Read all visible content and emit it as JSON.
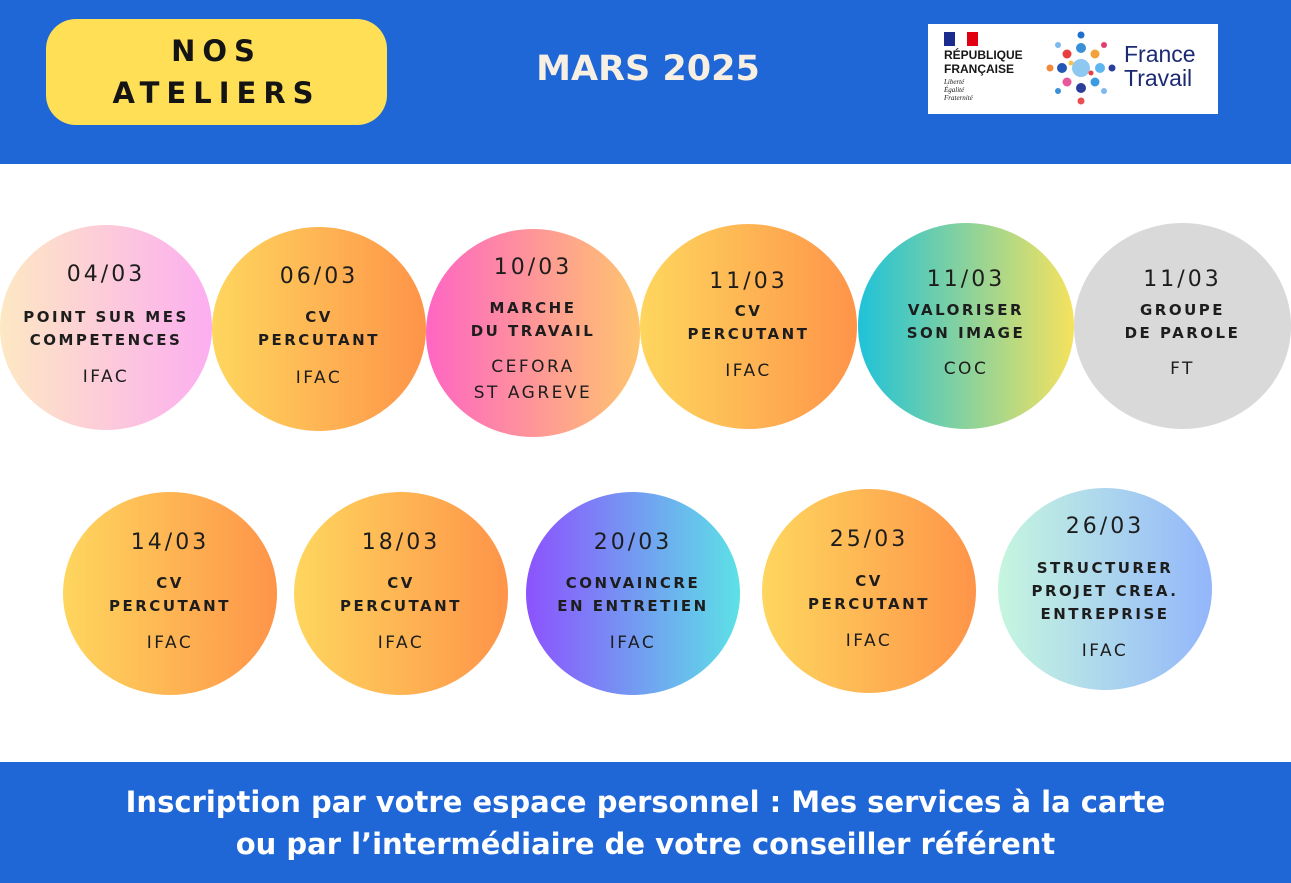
{
  "header": {
    "title_line1": "NOS",
    "title_line2": "ATELIERS",
    "month": "MARS 2025",
    "logo_rf": {
      "title": "RÉPUBLIQUE\nFRANÇAISE",
      "motto": "Liberté\nÉgalité\nFraternité"
    },
    "logo_ft": {
      "name": "France\nTravail",
      "icon": "france-travail-dots-icon"
    }
  },
  "workshops": [
    {
      "date": "04/03",
      "title": "POINT SUR MES\nCOMPETENCES",
      "org": "IFAC",
      "colors": [
        "#fde8c3",
        "#fcaef0"
      ]
    },
    {
      "date": "06/03",
      "title": "CV\nPERCUTANT",
      "org": "IFAC",
      "colors": [
        "#fed65e",
        "#fe9449"
      ]
    },
    {
      "date": "10/03",
      "title": "MARCHE\nDU TRAVAIL",
      "org": "CEFORA\nST AGREVE",
      "colors": [
        "#fe66c3",
        "#fec56e"
      ]
    },
    {
      "date": "11/03",
      "title": "CV\nPERCUTANT",
      "org": "IFAC",
      "colors": [
        "#fed65e",
        "#fe9449"
      ]
    },
    {
      "date": "11/03",
      "title": "VALORISER\nSON IMAGE",
      "org": "COC",
      "colors": [
        "#1fc2d9",
        "#f5e25e"
      ]
    },
    {
      "date": "11/03",
      "title": "GROUPE\nDE PAROLE",
      "org": "FT",
      "colors": [
        "#d9d9d9",
        "#d9d9d9"
      ]
    },
    {
      "date": "14/03",
      "title": "CV\nPERCUTANT",
      "org": "IFAC",
      "colors": [
        "#fed65e",
        "#fe9449"
      ]
    },
    {
      "date": "18/03",
      "title": "CV\nPERCUTANT",
      "org": "IFAC",
      "colors": [
        "#fed65e",
        "#fe9449"
      ]
    },
    {
      "date": "20/03",
      "title": "CONVAINCRE\nEN ENTRETIEN",
      "org": "IFAC",
      "colors": [
        "#8c52fe",
        "#5ce1e6"
      ]
    },
    {
      "date": "25/03",
      "title": "CV\nPERCUTANT",
      "org": "IFAC",
      "colors": [
        "#fed65e",
        "#fe9449"
      ]
    },
    {
      "date": "26/03",
      "title": "STRUCTURER\nPROJET CREA.\nENTREPRISE",
      "org": "IFAC",
      "colors": [
        "#c6f6df",
        "#93b6fb"
      ]
    }
  ],
  "footer": {
    "line1": "Inscription par votre espace personnel : Mes services à la carte",
    "line2": "ou par l’intermédiaire de votre conseiller référent"
  },
  "colors": {
    "banner": "#1f66d6",
    "title_pill": "#ffdf56",
    "month_text": "#f6efe2"
  }
}
